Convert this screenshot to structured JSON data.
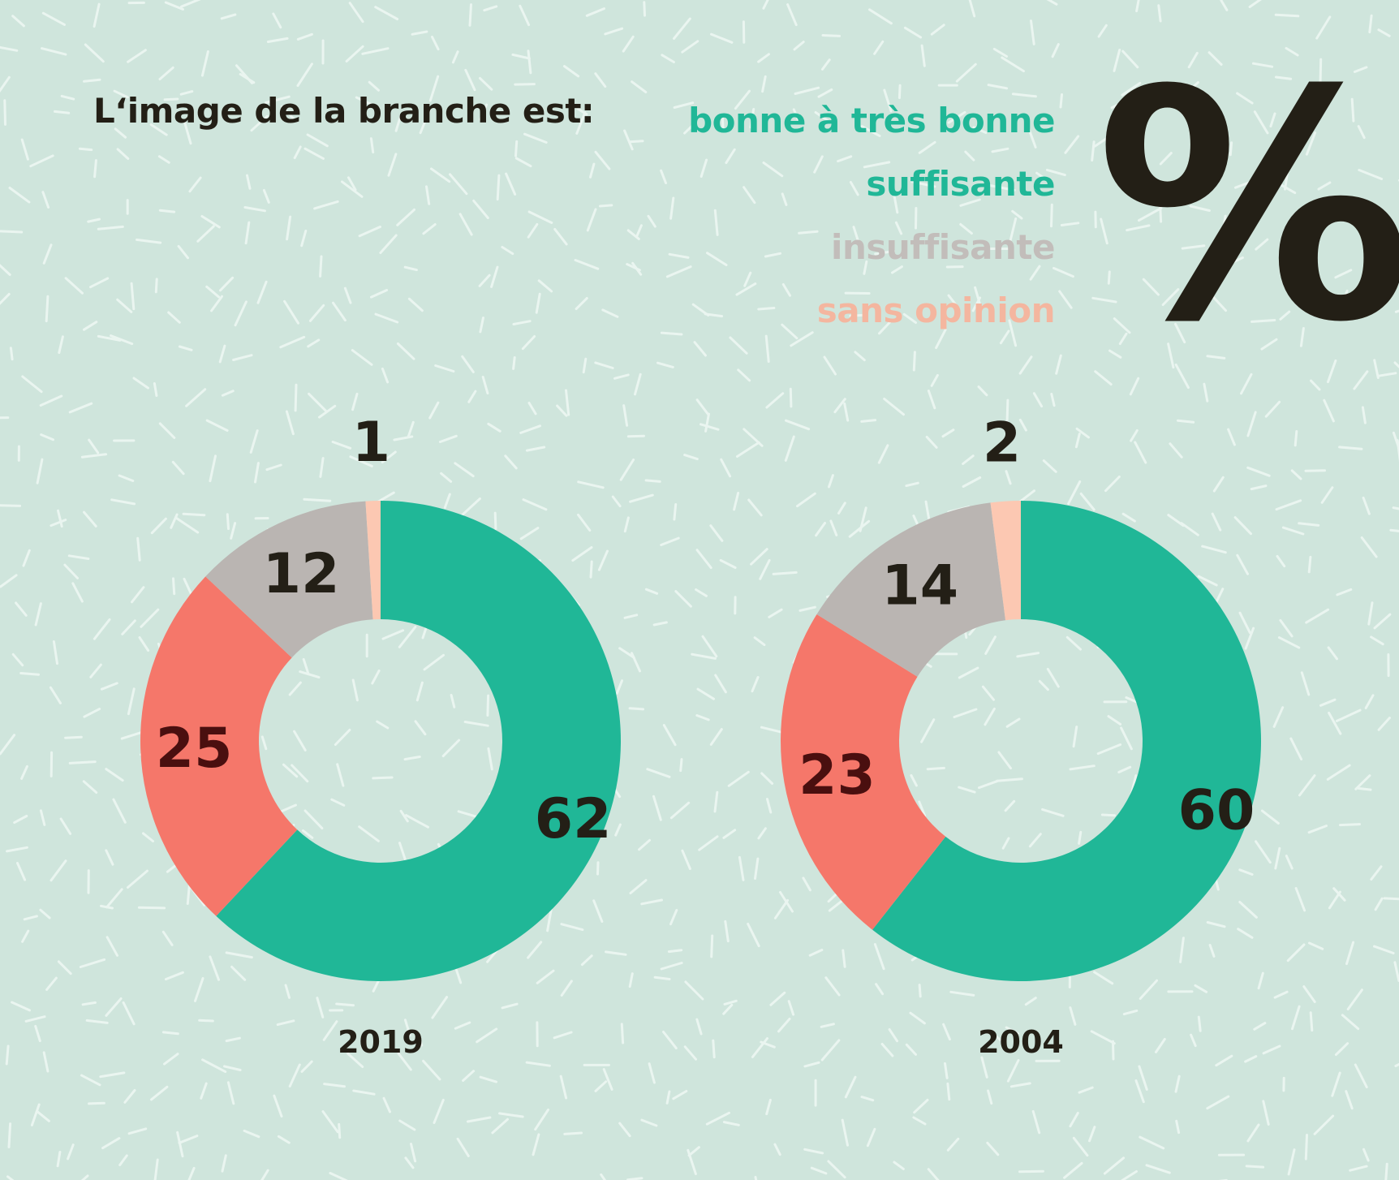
{
  "title": "L‘image de la branche est:",
  "unit_symbol": "%",
  "colors": {
    "background": "#cfe5dc",
    "pattern": "#eaf5f0",
    "bonne": "#20b797",
    "suffisante": "#f5776a",
    "insuffisante": "#bab5b2",
    "sans_opinion": "#fcc8b2",
    "dark_text": "#231f16",
    "label_dark_red": "#4a0f0f"
  },
  "legend": [
    {
      "label": "bonne à très bonne",
      "color": "#20b797"
    },
    {
      "label": "suffisante",
      "color": "#20b797"
    },
    {
      "label": "insuffisante",
      "color": "#c2bdba"
    },
    {
      "label": "sans opinion",
      "color": "#f4b69f"
    }
  ],
  "chart_data": [
    {
      "type": "pie",
      "donut": true,
      "year": "2019",
      "unit": "%",
      "categories": [
        "bonne à très bonne",
        "suffisante",
        "insuffisante",
        "sans opinion"
      ],
      "values": [
        62,
        25,
        12,
        1
      ]
    },
    {
      "type": "pie",
      "donut": true,
      "year": "2004",
      "unit": "%",
      "categories": [
        "bonne à très bonne",
        "suffisante",
        "insuffisante",
        "sans opinion"
      ],
      "values": [
        60,
        23,
        14,
        2
      ]
    }
  ]
}
